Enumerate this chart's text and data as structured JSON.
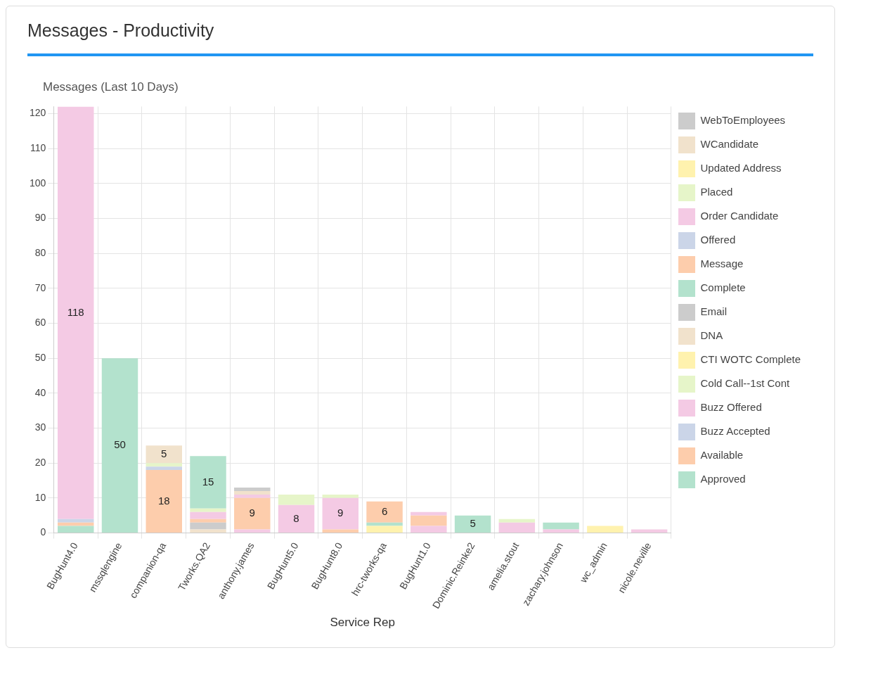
{
  "chart_data": {
    "type": "bar",
    "title": "Messages - Productivity",
    "subtitle": "Messages (Last 10 Days)",
    "xlabel": "Service Rep",
    "stacked": true,
    "legend": "right",
    "grid": true,
    "categories": [
      "BugHunt4.0",
      "mssqlengine",
      "companion-qa",
      "Tworks.QA2",
      "anthony.james",
      "BugHunt5.0",
      "BugHunt8.0",
      "hrc-tworks-qa",
      "BugHunt1.0",
      "Dominic.Reinke2",
      "amelia.stout",
      "zachary.johnson",
      "wc_admin",
      "nicole.neville"
    ],
    "ylim": [
      0,
      122
    ],
    "yticks": [
      0,
      10,
      20,
      30,
      40,
      50,
      60,
      70,
      80,
      90,
      100,
      110,
      120
    ],
    "series": [
      {
        "name": "Approved",
        "color": "#b3e2cd",
        "values": [
          2,
          50,
          0,
          0,
          0,
          0,
          0,
          0,
          0,
          5,
          0,
          0,
          0,
          0
        ],
        "value_labels": [
          null,
          "50",
          null,
          null,
          null,
          null,
          null,
          null,
          null,
          "5",
          null,
          null,
          null,
          null
        ]
      },
      {
        "name": "Available",
        "color": "#fdcdac",
        "values": [
          1,
          0,
          18,
          0,
          0,
          0,
          1,
          0,
          0,
          0,
          0,
          0,
          0,
          0
        ],
        "value_labels": [
          null,
          null,
          "18",
          null,
          null,
          null,
          null,
          null,
          null,
          null,
          null,
          null,
          null,
          null
        ]
      },
      {
        "name": "Buzz Accepted",
        "color": "#cbd5e8",
        "values": [
          1,
          0,
          1,
          0,
          0,
          0,
          0,
          0,
          0,
          0,
          0,
          0,
          0,
          0
        ]
      },
      {
        "name": "Buzz Offered",
        "color": "#f4cae4",
        "values": [
          118,
          0,
          0,
          0,
          1,
          8,
          9,
          0,
          2,
          0,
          3,
          1,
          0,
          1
        ],
        "value_labels": [
          "118",
          null,
          null,
          null,
          null,
          "8",
          "9",
          null,
          null,
          null,
          null,
          null,
          null,
          null
        ]
      },
      {
        "name": "Cold Call--1st Cont",
        "color": "#e6f5c9",
        "values": [
          0,
          0,
          1,
          0,
          0,
          3,
          1,
          0,
          0,
          0,
          1,
          0,
          0,
          0
        ]
      },
      {
        "name": "CTI WOTC Complete",
        "color": "#fff2ae",
        "values": [
          0,
          0,
          0,
          0,
          0,
          0,
          0,
          2,
          0,
          0,
          0,
          0,
          2,
          0
        ]
      },
      {
        "name": "DNA",
        "color": "#f1e2cc",
        "values": [
          0,
          0,
          5,
          1,
          0,
          0,
          0,
          0,
          0,
          0,
          0,
          0,
          0,
          0
        ],
        "value_labels": [
          null,
          null,
          "5",
          null,
          null,
          null,
          null,
          null,
          null,
          null,
          null,
          null,
          null,
          null
        ]
      },
      {
        "name": "Email",
        "color": "#cccccc",
        "values": [
          0,
          0,
          0,
          2,
          0,
          0,
          0,
          0,
          0,
          0,
          0,
          0,
          0,
          0
        ]
      },
      {
        "name": "Complete",
        "color": "#b3e2cd",
        "values": [
          0,
          0,
          0,
          0,
          0,
          0,
          0,
          1,
          0,
          0,
          0,
          2,
          0,
          0
        ]
      },
      {
        "name": "Message",
        "color": "#fdcdac",
        "values": [
          0,
          0,
          0,
          1,
          9,
          0,
          0,
          6,
          3,
          0,
          0,
          0,
          0,
          0
        ],
        "value_labels": [
          null,
          null,
          null,
          null,
          "9",
          null,
          null,
          "6",
          null,
          null,
          null,
          null,
          null,
          null
        ]
      },
      {
        "name": "Offered",
        "color": "#cbd5e8",
        "values": [
          0,
          0,
          0,
          0,
          0,
          0,
          0,
          0,
          0,
          0,
          0,
          0,
          0,
          0
        ]
      },
      {
        "name": "Order Candidate",
        "color": "#f4cae4",
        "values": [
          0,
          0,
          0,
          2,
          1,
          0,
          0,
          0,
          1,
          0,
          0,
          0,
          0,
          0
        ]
      },
      {
        "name": "Placed",
        "color": "#e6f5c9",
        "values": [
          0,
          0,
          0,
          1,
          0,
          0,
          0,
          0,
          0,
          0,
          0,
          0,
          0,
          0
        ]
      },
      {
        "name": "Updated Address",
        "color": "#fff2ae",
        "values": [
          0,
          0,
          0,
          0,
          0,
          0,
          0,
          0,
          0,
          0,
          0,
          0,
          0,
          0
        ]
      },
      {
        "name": "WCandidate",
        "color": "#f1e2cc",
        "values": [
          0,
          0,
          0,
          0,
          1,
          0,
          0,
          0,
          0,
          0,
          0,
          0,
          0,
          0
        ]
      },
      {
        "name": "WebToEmployees",
        "color": "#cccccc",
        "values": [
          0,
          0,
          0,
          0,
          1,
          0,
          0,
          0,
          0,
          0,
          0,
          0,
          0,
          0
        ]
      },
      {
        "color": "#b3e2cd",
        "values": [
          0,
          0,
          0,
          15,
          0,
          0,
          0,
          0,
          0,
          0,
          0,
          0,
          0,
          0
        ],
        "value_labels": [
          null,
          null,
          null,
          "15",
          null,
          null,
          null,
          null,
          null,
          null,
          null,
          null,
          null,
          null
        ]
      }
    ]
  }
}
